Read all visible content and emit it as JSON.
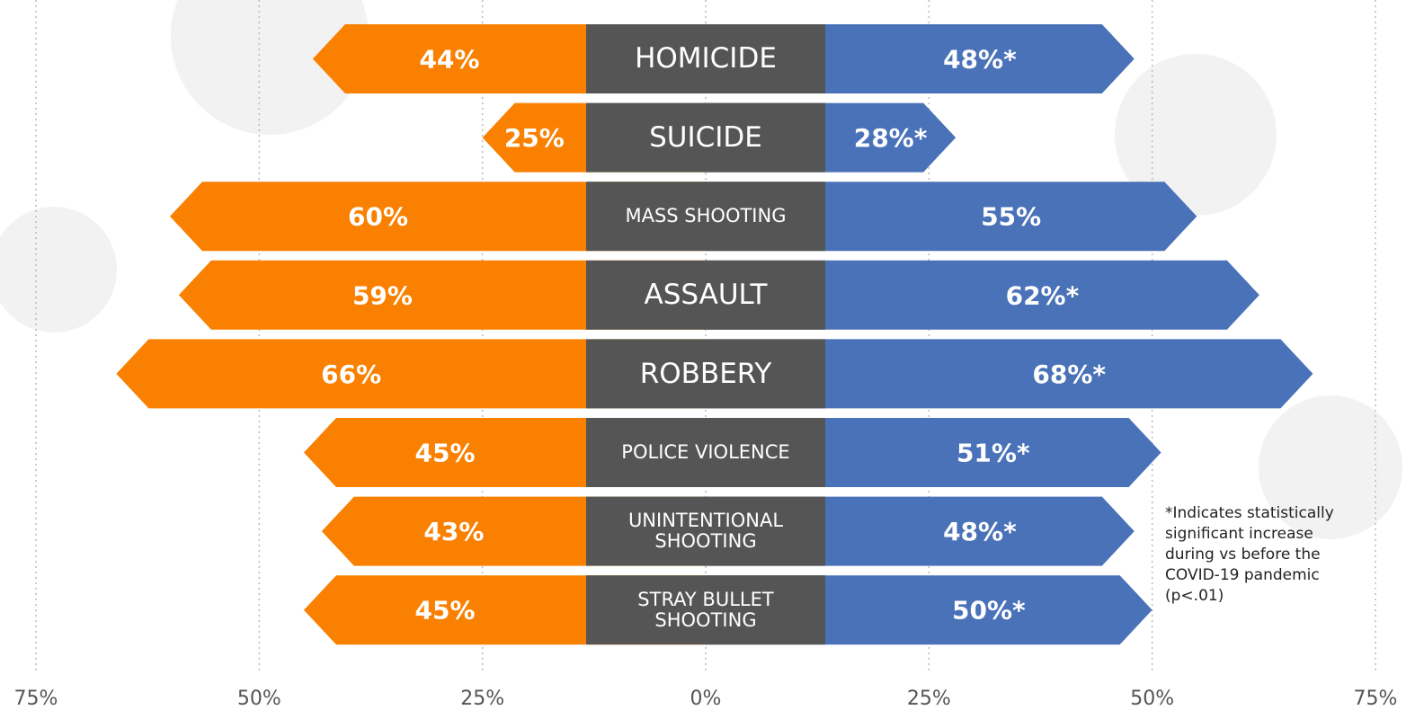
{
  "chart_data": {
    "type": "diverging_bar",
    "categories": [
      "HOMICIDE",
      "SUICIDE",
      "MASS SHOOTING",
      "ASSAULT",
      "ROBBERY",
      "POLICE VIOLENCE",
      "UNINTENTIONAL SHOOTING",
      "STRAY BULLET SHOOTING"
    ],
    "series": [
      {
        "side": "left",
        "color": "#f98000",
        "values": [
          44,
          25,
          60,
          59,
          66,
          45,
          43,
          45
        ],
        "value_labels": [
          "44%",
          "25%",
          "60%",
          "59%",
          "66%",
          "45%",
          "43%",
          "45%"
        ]
      },
      {
        "side": "right",
        "color": "#4a72b8",
        "values": [
          48,
          28,
          55,
          62,
          68,
          51,
          48,
          50
        ],
        "value_labels": [
          "48%*",
          "28%*",
          "55%",
          "62%*",
          "68%*",
          "51%*",
          "48%*",
          "50%*"
        ]
      }
    ],
    "xlim": [
      -75,
      75
    ],
    "xticks": [
      {
        "value": -75,
        "label": "75%"
      },
      {
        "value": -50,
        "label": "50%"
      },
      {
        "value": -25,
        "label": "25%"
      },
      {
        "value": 0,
        "label": "0%"
      },
      {
        "value": 25,
        "label": "25%"
      },
      {
        "value": 50,
        "label": "50%"
      },
      {
        "value": 75,
        "label": "75%"
      }
    ],
    "grid": true,
    "footnote": [
      "*Indicates statistically",
      "significant increase",
      "during vs before the",
      "COVID-19 pandemic",
      "(p<.01)"
    ]
  }
}
